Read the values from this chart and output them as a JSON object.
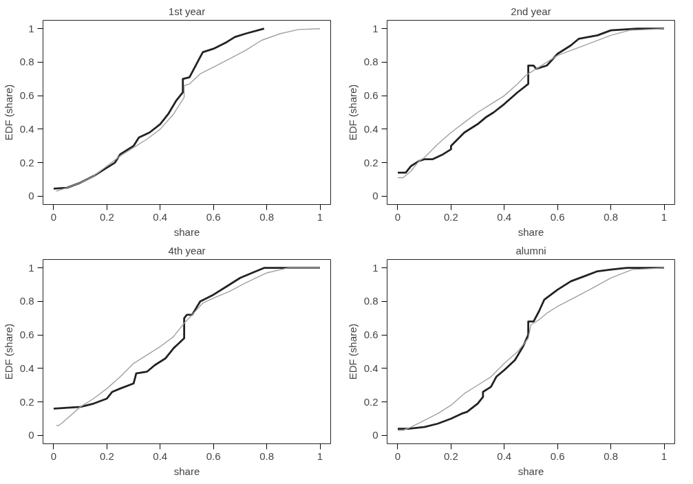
{
  "chart_data": [
    {
      "type": "line",
      "title": "1st year",
      "xlabel": "share",
      "ylabel": "EDF (share)",
      "xlim": [
        -0.04,
        1.04
      ],
      "ylim": [
        -0.05,
        1.05
      ],
      "xticks": [
        0,
        0.2,
        0.4,
        0.6,
        0.8,
        1
      ],
      "yticks": [
        0,
        0.2,
        0.4,
        0.6,
        0.8,
        1
      ],
      "series": [
        {
          "color": "#222222",
          "x": [
            0,
            0.05,
            0.1,
            0.15,
            0.2,
            0.23,
            0.25,
            0.3,
            0.32,
            0.36,
            0.4,
            0.43,
            0.46,
            0.485,
            0.485,
            0.51,
            0.54,
            0.56,
            0.6,
            0.65,
            0.68,
            0.72,
            0.79
          ],
          "values": [
            0.045,
            0.05,
            0.08,
            0.12,
            0.17,
            0.2,
            0.25,
            0.3,
            0.35,
            0.38,
            0.43,
            0.49,
            0.57,
            0.62,
            0.7,
            0.71,
            0.8,
            0.86,
            0.88,
            0.92,
            0.95,
            0.97,
            1.0
          ]
        },
        {
          "color": "#a0a0a0",
          "x": [
            0.01,
            0.05,
            0.1,
            0.15,
            0.2,
            0.25,
            0.3,
            0.35,
            0.4,
            0.45,
            0.49,
            0.49,
            0.51,
            0.55,
            0.6,
            0.66,
            0.72,
            0.78,
            0.85,
            0.92,
            1.0
          ],
          "values": [
            0.03,
            0.05,
            0.08,
            0.12,
            0.18,
            0.24,
            0.29,
            0.34,
            0.4,
            0.49,
            0.59,
            0.66,
            0.67,
            0.73,
            0.77,
            0.82,
            0.87,
            0.93,
            0.97,
            0.995,
            1.0
          ]
        }
      ]
    },
    {
      "type": "line",
      "title": "2nd year",
      "xlabel": "share",
      "ylabel": "EDF (share)",
      "xlim": [
        -0.04,
        1.04
      ],
      "ylim": [
        -0.05,
        1.05
      ],
      "xticks": [
        0,
        0.2,
        0.4,
        0.6,
        0.8,
        1
      ],
      "yticks": [
        0,
        0.2,
        0.4,
        0.6,
        0.8,
        1
      ],
      "series": [
        {
          "color": "#222222",
          "x": [
            0,
            0.03,
            0.05,
            0.08,
            0.1,
            0.13,
            0.17,
            0.2,
            0.2,
            0.25,
            0.3,
            0.33,
            0.36,
            0.4,
            0.45,
            0.49,
            0.49,
            0.51,
            0.52,
            0.56,
            0.6,
            0.65,
            0.68,
            0.75,
            0.8,
            0.9,
            1.0
          ],
          "values": [
            0.14,
            0.14,
            0.18,
            0.21,
            0.22,
            0.22,
            0.25,
            0.28,
            0.3,
            0.38,
            0.43,
            0.47,
            0.5,
            0.55,
            0.62,
            0.67,
            0.78,
            0.78,
            0.76,
            0.78,
            0.85,
            0.9,
            0.94,
            0.96,
            0.99,
            1.0,
            1.0
          ]
        },
        {
          "color": "#a0a0a0",
          "x": [
            0,
            0.02,
            0.05,
            0.08,
            0.1,
            0.15,
            0.2,
            0.25,
            0.3,
            0.35,
            0.4,
            0.45,
            0.48,
            0.52,
            0.56,
            0.6,
            0.7,
            0.8,
            0.87,
            1.0
          ],
          "values": [
            0.11,
            0.11,
            0.15,
            0.21,
            0.23,
            0.31,
            0.38,
            0.44,
            0.5,
            0.55,
            0.6,
            0.67,
            0.72,
            0.76,
            0.8,
            0.84,
            0.9,
            0.96,
            0.99,
            1.0
          ]
        }
      ]
    },
    {
      "type": "line",
      "title": "4th year",
      "xlabel": "share",
      "ylabel": "EDF (share)",
      "xlim": [
        -0.04,
        1.04
      ],
      "ylim": [
        -0.05,
        1.05
      ],
      "xticks": [
        0,
        0.2,
        0.4,
        0.6,
        0.8,
        1
      ],
      "yticks": [
        0,
        0.2,
        0.4,
        0.6,
        0.8,
        1
      ],
      "series": [
        {
          "color": "#222222",
          "x": [
            0,
            0.1,
            0.15,
            0.2,
            0.22,
            0.25,
            0.3,
            0.31,
            0.35,
            0.38,
            0.42,
            0.45,
            0.49,
            0.49,
            0.5,
            0.52,
            0.55,
            0.6,
            0.65,
            0.7,
            0.76,
            0.79,
            1.0
          ],
          "values": [
            0.16,
            0.17,
            0.19,
            0.22,
            0.26,
            0.28,
            0.31,
            0.37,
            0.38,
            0.42,
            0.46,
            0.52,
            0.58,
            0.7,
            0.72,
            0.72,
            0.8,
            0.84,
            0.89,
            0.94,
            0.98,
            1.0,
            1.0
          ]
        },
        {
          "color": "#a0a0a0",
          "x": [
            0.01,
            0.02,
            0.05,
            0.1,
            0.15,
            0.2,
            0.25,
            0.3,
            0.35,
            0.4,
            0.45,
            0.49,
            0.52,
            0.56,
            0.6,
            0.66,
            0.72,
            0.8,
            0.88,
            1.0
          ],
          "values": [
            0.06,
            0.06,
            0.1,
            0.17,
            0.22,
            0.28,
            0.35,
            0.43,
            0.48,
            0.53,
            0.59,
            0.67,
            0.72,
            0.79,
            0.82,
            0.86,
            0.91,
            0.97,
            1.0,
            1.0
          ]
        }
      ]
    },
    {
      "type": "line",
      "title": "alumni",
      "xlabel": "share",
      "ylabel": "EDF (share)",
      "xlim": [
        -0.04,
        1.04
      ],
      "ylim": [
        -0.05,
        1.05
      ],
      "xticks": [
        0,
        0.2,
        0.4,
        0.6,
        0.8,
        1
      ],
      "yticks": [
        0,
        0.2,
        0.4,
        0.6,
        0.8,
        1
      ],
      "series": [
        {
          "color": "#222222",
          "x": [
            0,
            0.04,
            0.1,
            0.15,
            0.2,
            0.24,
            0.26,
            0.3,
            0.32,
            0.32,
            0.35,
            0.37,
            0.4,
            0.44,
            0.47,
            0.49,
            0.49,
            0.51,
            0.53,
            0.55,
            0.6,
            0.65,
            0.7,
            0.75,
            0.8,
            0.86,
            1.0
          ],
          "values": [
            0.04,
            0.04,
            0.05,
            0.07,
            0.1,
            0.13,
            0.14,
            0.19,
            0.23,
            0.26,
            0.29,
            0.35,
            0.39,
            0.45,
            0.53,
            0.6,
            0.68,
            0.68,
            0.74,
            0.81,
            0.87,
            0.92,
            0.95,
            0.98,
            0.99,
            1.0,
            1.0
          ]
        },
        {
          "color": "#a0a0a0",
          "x": [
            0,
            0.02,
            0.05,
            0.1,
            0.15,
            0.2,
            0.25,
            0.3,
            0.35,
            0.4,
            0.45,
            0.49,
            0.5,
            0.53,
            0.56,
            0.6,
            0.66,
            0.72,
            0.8,
            0.88,
            1.0
          ],
          "values": [
            0.03,
            0.03,
            0.05,
            0.09,
            0.13,
            0.18,
            0.25,
            0.3,
            0.35,
            0.43,
            0.5,
            0.58,
            0.66,
            0.69,
            0.73,
            0.77,
            0.82,
            0.87,
            0.94,
            0.99,
            1.0
          ]
        }
      ]
    }
  ]
}
